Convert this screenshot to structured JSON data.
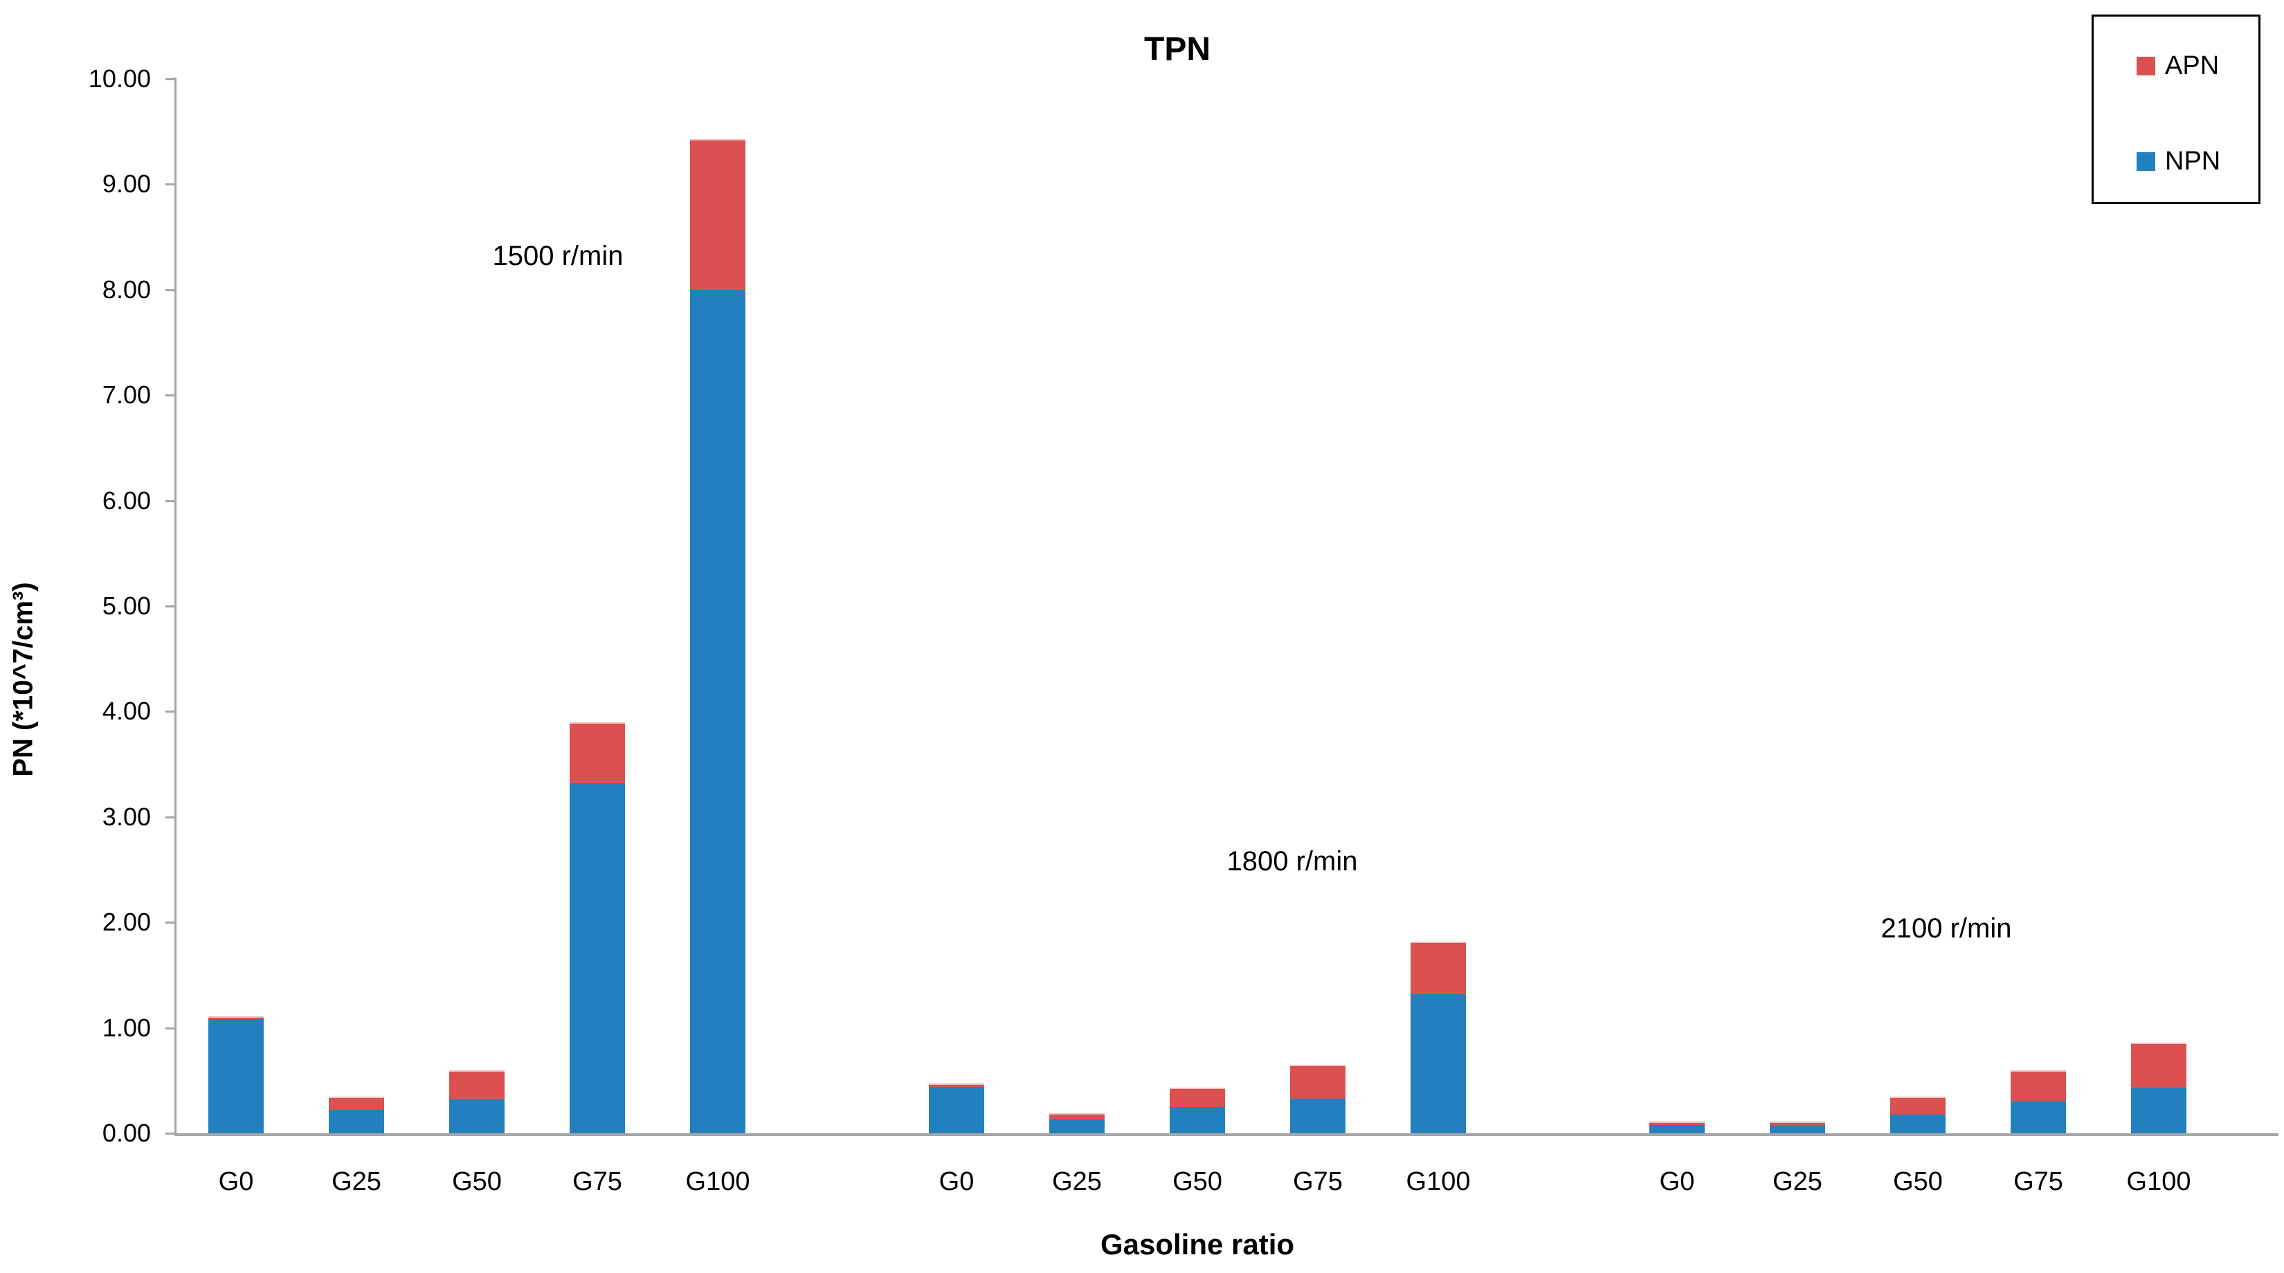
{
  "title": "TPN",
  "y_axis": {
    "label": "PN (*10^7/cm³)",
    "tick_labels": [
      "0.00",
      "1.00",
      "2.00",
      "3.00",
      "4.00",
      "5.00",
      "6.00",
      "7.00",
      "8.00",
      "9.00",
      "10.00"
    ]
  },
  "x_axis": {
    "label": "Gasoline ratio"
  },
  "legend": {
    "entries": [
      {
        "name": "APN",
        "color": "#DB5050"
      },
      {
        "name": "NPN",
        "color": "#2380BE"
      }
    ]
  },
  "annotations": [
    "1500 r/min",
    "1800 r/min",
    "2100 r/min"
  ],
  "chart_data": {
    "type": "bar",
    "stacked": true,
    "title": "TPN",
    "xlabel": "Gasoline ratio",
    "ylabel": "PN (*10^7/cm³)",
    "ylim": [
      0,
      10
    ],
    "ytick_step": 1.0,
    "grid": false,
    "legend_position": "top-right",
    "categories": [
      "G0",
      "G25",
      "G50",
      "G75",
      "G100"
    ],
    "groups": [
      {
        "label": "1500 r/min",
        "series": [
          {
            "name": "NPN",
            "color": "#2380BE",
            "values": [
              1.08,
              0.22,
              0.32,
              3.32,
              8.0
            ]
          },
          {
            "name": "APN",
            "color": "#DB5050",
            "values": [
              0.03,
              0.13,
              0.28,
              0.58,
              1.43
            ]
          }
        ]
      },
      {
        "label": "1800 r/min",
        "series": [
          {
            "name": "NPN",
            "color": "#2380BE",
            "values": [
              0.44,
              0.13,
              0.25,
              0.33,
              1.32
            ]
          },
          {
            "name": "APN",
            "color": "#DB5050",
            "values": [
              0.03,
              0.06,
              0.18,
              0.32,
              0.5
            ]
          }
        ]
      },
      {
        "label": "2100 r/min",
        "series": [
          {
            "name": "NPN",
            "color": "#2380BE",
            "values": [
              0.08,
              0.07,
              0.18,
              0.3,
              0.43
            ]
          },
          {
            "name": "APN",
            "color": "#DB5050",
            "values": [
              0.03,
              0.04,
              0.17,
              0.3,
              0.43
            ]
          }
        ]
      }
    ]
  }
}
